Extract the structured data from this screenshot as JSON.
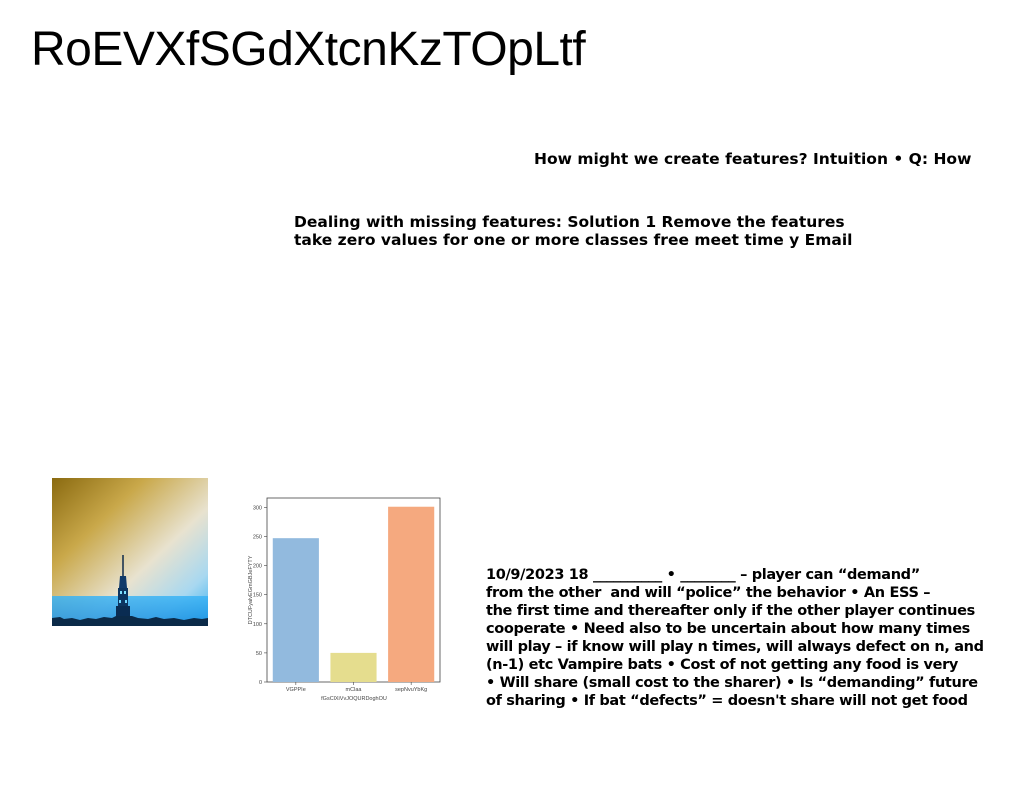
{
  "slide": {
    "title": "RoEVXfSGdXtcnKzTOpLtf",
    "text_block_1": "How might we create features? Intuition • Q: How",
    "text_block_2": "Dealing with missing features: Solution 1 Remove the features\ntake zero values for one or more classes free meet time y Email",
    "text_block_3": "10/9/2023 18 __________ • ________ – player can “demand”\nfrom the other  and will “police” the behavior • An ESS –\nthe first time and thereafter only if the other player continues\ncooperate • Need also to be uncertain about how many times\nwill play – if know will play n times, will always defect on n, and\n(n-1) etc Vampire bats • Cost of not getting any food is very\n• Will share (small cost to the sharer) • Is “demanding” future\nof sharing • If bat “defects” = doesn't share will not get food"
  },
  "colors": {
    "bar_colors": [
      "#92bade",
      "#e5dd8e",
      "#f5a97f"
    ],
    "photo_sky_top": "#8a6a10",
    "photo_sky_mid": "#e8e2cf",
    "photo_sky_bottom": "#33aef0"
  },
  "chart_data": {
    "type": "bar",
    "categories": [
      "VGPPIe",
      "mClaa",
      "sepNvuYbKg"
    ],
    "values": [
      247,
      50,
      301
    ],
    "xlabel": "fGsClXiVvJOQURDoghOU",
    "ylabel": "DTCUFyalvEGmGBJeFYTY",
    "yticks": [
      0,
      50,
      100,
      150,
      200,
      250,
      300
    ],
    "ylim": [
      0,
      316
    ]
  }
}
